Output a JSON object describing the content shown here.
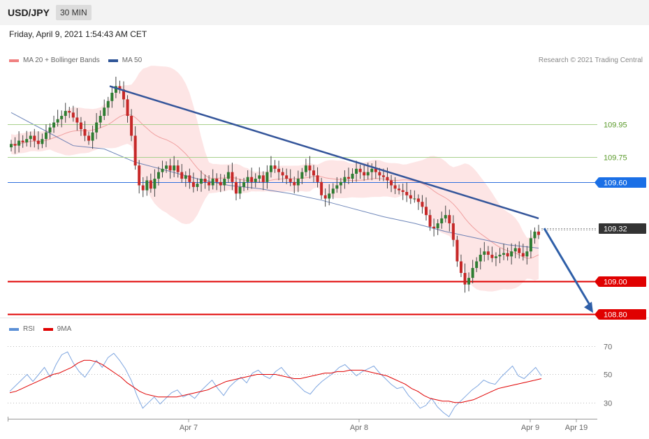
{
  "header": {
    "symbol": "USD/JPY",
    "timeframe": "30 MIN",
    "datetime": "Friday, April 9, 2021 1:54:43 AM CET",
    "copyright": "Research © 2021 Trading Central"
  },
  "legend_main": [
    {
      "label": "MA 20 + Bollinger Bands",
      "color": "#f08080"
    },
    {
      "label": "MA 50",
      "color": "#2f5597"
    }
  ],
  "legend_rsi": [
    {
      "label": "RSI",
      "color": "#5b8fd6"
    },
    {
      "label": "9MA",
      "color": "#e00000"
    }
  ],
  "chart_data": [
    {
      "type": "candlestick",
      "title": "",
      "xlabel": "",
      "ylabel": "",
      "ylim": [
        108.78,
        110.3
      ],
      "x_ticks": [
        "Apr 7",
        "Apr 8",
        "Apr 9",
        "Apr 19"
      ],
      "levels": [
        {
          "value": 109.95,
          "label": "109.95",
          "style": "thin-green"
        },
        {
          "value": 109.75,
          "label": "109.75",
          "style": "thin-green"
        },
        {
          "value": 109.6,
          "label": "109.60",
          "style": "blue-badge"
        },
        {
          "value": 109.32,
          "label": "109.32",
          "style": "current-price"
        },
        {
          "value": 109.0,
          "label": "109.00",
          "style": "red-badge"
        },
        {
          "value": 108.8,
          "label": "108.80",
          "style": "red-badge"
        }
      ],
      "close_series": [
        109.83,
        109.82,
        109.85,
        109.84,
        109.86,
        109.88,
        109.85,
        109.83,
        109.86,
        109.9,
        109.93,
        109.96,
        109.98,
        110.0,
        110.03,
        110.02,
        109.99,
        109.96,
        109.92,
        109.88,
        109.85,
        109.9,
        109.96,
        110.0,
        110.05,
        110.09,
        110.14,
        110.18,
        110.16,
        110.1,
        110.0,
        109.88,
        109.7,
        109.58,
        109.55,
        109.61,
        109.56,
        109.62,
        109.66,
        109.68,
        109.7,
        109.67,
        109.7,
        109.66,
        109.62,
        109.64,
        109.6,
        109.57,
        109.59,
        109.62,
        109.6,
        109.58,
        109.62,
        109.6,
        109.58,
        109.62,
        109.66,
        109.6,
        109.53,
        109.57,
        109.6,
        109.63,
        109.6,
        109.62,
        109.64,
        109.6,
        109.66,
        109.7,
        109.68,
        109.66,
        109.64,
        109.62,
        109.6,
        109.58,
        109.62,
        109.66,
        109.7,
        109.67,
        109.64,
        109.6,
        109.52,
        109.5,
        109.53,
        109.56,
        109.58,
        109.6,
        109.63,
        109.62,
        109.65,
        109.68,
        109.66,
        109.64,
        109.66,
        109.68,
        109.66,
        109.64,
        109.63,
        109.61,
        109.58,
        109.56,
        109.55,
        109.54,
        109.52,
        109.5,
        109.5,
        109.48,
        109.45,
        109.4,
        109.33,
        109.32,
        109.35,
        109.38,
        109.4,
        109.35,
        109.25,
        109.12,
        109.05,
        108.98,
        109.02,
        109.08,
        109.12,
        109.16,
        109.18,
        109.16,
        109.14,
        109.15,
        109.16,
        109.17,
        109.15,
        109.18,
        109.2,
        109.17,
        109.15,
        109.18,
        109.26,
        109.3,
        109.28
      ],
      "ma50_series": [
        110.02,
        109.92,
        109.82,
        109.8,
        109.72,
        109.67,
        109.62,
        109.58,
        109.56,
        109.53,
        109.49,
        109.44,
        109.39,
        109.35,
        109.3,
        109.26,
        109.22,
        109.2
      ],
      "trendline": {
        "from": 110.18,
        "to": 109.38
      },
      "projection": {
        "from": 109.32,
        "to": 108.8
      }
    },
    {
      "type": "line",
      "title": "RSI",
      "xlabel": "",
      "ylabel": "",
      "ylim": [
        20,
        78
      ],
      "y_ticks": [
        70,
        50,
        30
      ],
      "series": [
        {
          "name": "RSI",
          "values": [
            38,
            42,
            46,
            50,
            45,
            50,
            55,
            48,
            57,
            64,
            66,
            58,
            52,
            48,
            54,
            60,
            55,
            62,
            65,
            60,
            54,
            46,
            35,
            26,
            30,
            34,
            29,
            33,
            37,
            39,
            34,
            36,
            33,
            38,
            42,
            46,
            40,
            35,
            41,
            45,
            48,
            44,
            51,
            53,
            49,
            47,
            52,
            55,
            50,
            46,
            42,
            38,
            36,
            41,
            45,
            48,
            51,
            55,
            57,
            53,
            49,
            52,
            54,
            56,
            51,
            47,
            43,
            40,
            41,
            35,
            31,
            26,
            28,
            33,
            27,
            23,
            20,
            27,
            31,
            35,
            39,
            42,
            46,
            44,
            43,
            48,
            52,
            56,
            49,
            47,
            51,
            55,
            49
          ]
        },
        {
          "name": "9MA",
          "values": [
            37,
            38,
            40,
            42,
            44,
            46,
            48,
            50,
            51,
            53,
            55,
            58,
            60,
            60,
            59,
            57,
            54,
            51,
            48,
            44,
            41,
            38,
            36,
            35,
            34,
            34,
            34,
            34,
            35,
            36,
            37,
            38,
            39,
            41,
            43,
            45,
            46,
            47,
            48,
            49,
            50,
            50,
            50,
            50,
            49,
            48,
            47,
            47,
            48,
            49,
            50,
            51,
            51,
            52,
            52,
            53,
            53,
            53,
            52,
            51,
            50,
            49,
            47,
            45,
            43,
            40,
            38,
            35,
            33,
            32,
            31,
            31,
            30,
            30,
            31,
            32,
            34,
            36,
            38,
            40,
            41,
            42,
            43,
            44,
            45,
            46,
            47
          ]
        }
      ]
    }
  ]
}
